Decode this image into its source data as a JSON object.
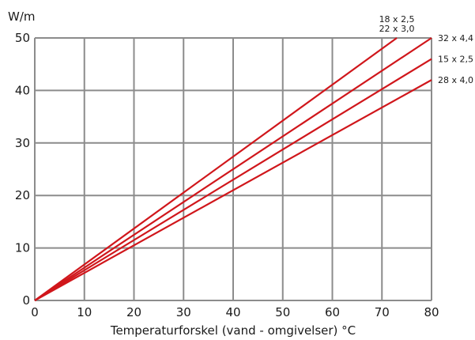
{
  "chart_data": {
    "type": "line",
    "title": "",
    "ylabel": "W/m",
    "xlabel": "Temperaturforskel (vand - omgivelser) °C",
    "xlim": [
      0,
      80
    ],
    "ylim": [
      0,
      50
    ],
    "xticks": [
      0,
      10,
      20,
      30,
      40,
      50,
      60,
      70,
      80
    ],
    "yticks": [
      0,
      10,
      20,
      30,
      40,
      50
    ],
    "x_tick_labels": [
      "0",
      "10",
      "20",
      "30",
      "40",
      "50",
      "60",
      "70",
      "80"
    ],
    "y_tick_labels": [
      "0",
      "10",
      "20",
      "30",
      "40",
      "50"
    ],
    "grid": true,
    "legend": "none",
    "series": [
      {
        "name": "18 x 2,5\n22 x 3,0",
        "label_lines": [
          "18 x 2,5",
          "22 x 3,0"
        ],
        "x": [
          0,
          73
        ],
        "y": [
          0,
          50
        ]
      },
      {
        "name": "32 x 4,4",
        "label_lines": [
          "32 x 4,4"
        ],
        "x": [
          0,
          80
        ],
        "y": [
          0,
          50
        ]
      },
      {
        "name": "15 x 2,5",
        "label_lines": [
          "15 x 2,5"
        ],
        "x": [
          0,
          80
        ],
        "y": [
          0,
          46
        ]
      },
      {
        "name": "28 x 4,0",
        "label_lines": [
          "28 x 4,0"
        ],
        "x": [
          0,
          80
        ],
        "y": [
          0,
          42
        ]
      }
    ],
    "colors": {
      "series": "#d0161b",
      "grid": "#8c8c8c",
      "text": "#1a1a1a"
    }
  }
}
